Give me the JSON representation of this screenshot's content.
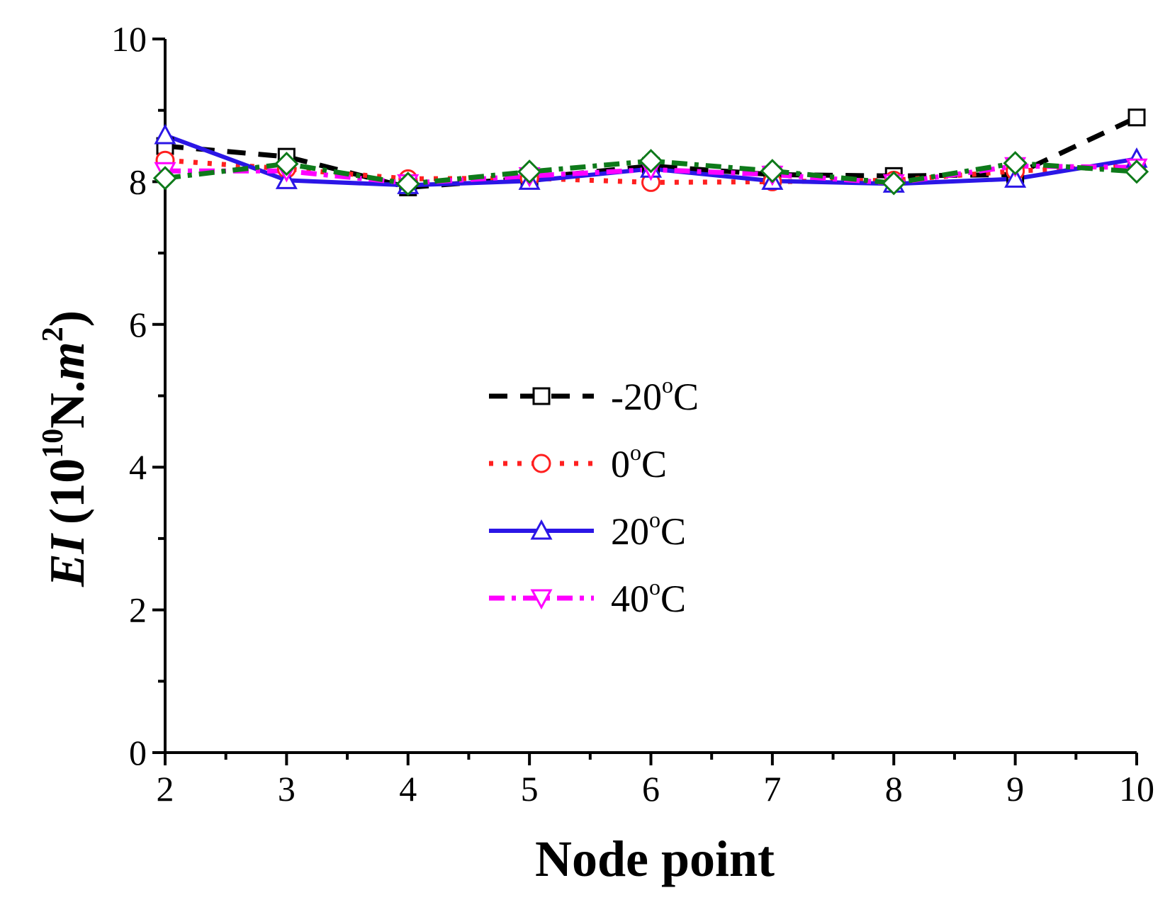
{
  "chart_data": {
    "type": "line",
    "xlabel": "Node point",
    "ylabel": {
      "variable": "EI",
      "unit_prefix": "10",
      "unit_exponent": "10",
      "unit_base": "N.",
      "unit_var": "m",
      "unit_var_exponent": "2"
    },
    "xlim": [
      2,
      10
    ],
    "ylim": [
      0,
      10
    ],
    "x_ticks": [
      "2",
      "3",
      "4",
      "5",
      "6",
      "7",
      "8",
      "9",
      "10"
    ],
    "y_ticks": [
      "0",
      "2",
      "4",
      "6",
      "8",
      "10"
    ],
    "legend_position": "center",
    "x": [
      2,
      3,
      4,
      5,
      6,
      7,
      8,
      9,
      10
    ],
    "series": [
      {
        "name": "-20°C",
        "label_main": "-20",
        "label_sup": "o",
        "label_unit": "C",
        "color": "#000000",
        "dash": "dashed",
        "marker": "square",
        "values": [
          8.5,
          8.35,
          7.92,
          8.05,
          8.22,
          8.1,
          8.08,
          8.1,
          8.9
        ]
      },
      {
        "name": "0°C",
        "label_main": "0",
        "label_sup": "o",
        "label_unit": "C",
        "color": "#ff2020",
        "dash": "dotted",
        "marker": "circle",
        "values": [
          8.3,
          8.18,
          8.04,
          8.05,
          7.99,
          8.0,
          8.02,
          8.15,
          8.22
        ]
      },
      {
        "name": "20°C",
        "label_main": "20",
        "label_sup": "o",
        "label_unit": "C",
        "color": "#2b16e6",
        "dash": "solid",
        "marker": "triangle-up",
        "values": [
          8.65,
          8.02,
          7.95,
          8.01,
          8.18,
          8.01,
          7.97,
          8.04,
          8.32
        ]
      },
      {
        "name": "40°C",
        "label_main": "40",
        "label_sup": "o",
        "label_unit": "C",
        "color": "#ff00ff",
        "dash": "dash-dot",
        "marker": "triangle-down",
        "values": [
          8.15,
          8.15,
          7.98,
          8.08,
          8.17,
          8.1,
          7.98,
          8.22,
          8.2
        ]
      },
      {
        "name": "",
        "color": "#0e7a1a",
        "dash": "dash-dot",
        "marker": "diamond",
        "values": [
          8.05,
          8.25,
          7.97,
          8.14,
          8.29,
          8.15,
          7.98,
          8.26,
          8.14
        ]
      }
    ]
  }
}
